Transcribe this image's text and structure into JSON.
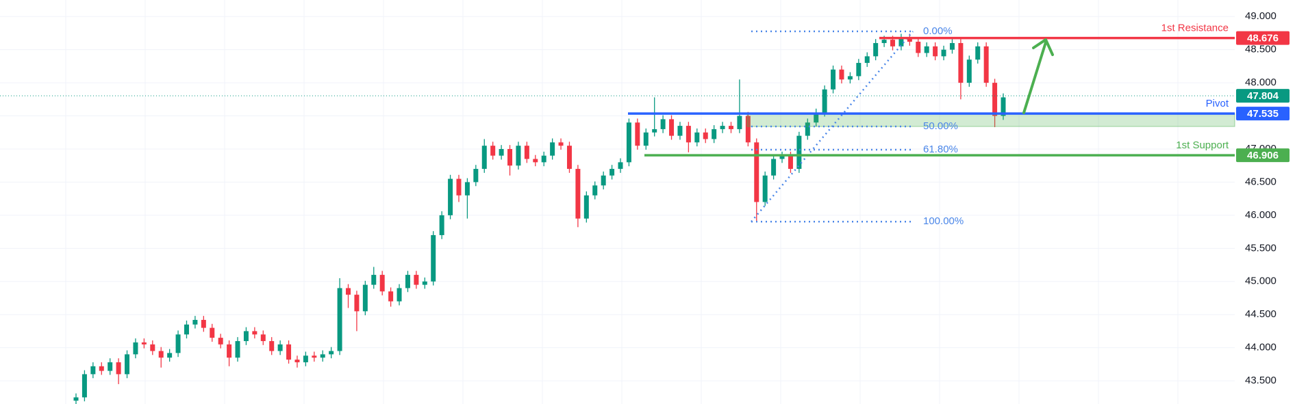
{
  "chart_data": {
    "type": "candlestick",
    "up_color": "#089981",
    "down_color": "#f23645",
    "open": [
      43.2,
      43.25,
      43.6,
      43.72,
      43.65,
      43.78,
      43.6,
      43.9,
      44.08,
      44.05,
      43.95,
      43.85,
      43.92,
      44.2,
      44.35,
      44.42,
      44.3,
      44.15,
      44.05,
      43.85,
      44.1,
      44.25,
      44.2,
      44.1,
      43.95,
      44.05,
      43.82,
      43.78,
      43.88,
      43.85,
      43.9,
      43.95,
      44.9,
      44.8,
      44.55,
      44.95,
      45.1,
      44.85,
      44.7,
      44.9,
      45.1,
      44.95,
      45.0,
      45.7,
      46.0,
      46.55,
      46.3,
      46.5,
      46.7,
      47.05,
      46.9,
      47.0,
      46.75,
      47.05,
      46.85,
      46.8,
      46.9,
      47.1,
      47.05,
      46.7,
      45.95,
      46.3,
      46.45,
      46.6,
      46.7,
      46.8,
      47.4,
      47.05,
      47.25,
      47.3,
      47.45,
      47.2,
      47.35,
      47.1,
      47.25,
      47.15,
      47.3,
      47.35,
      47.3,
      47.5,
      47.1,
      46.2,
      46.6,
      46.85,
      46.9,
      46.7,
      47.2,
      47.4,
      47.55,
      47.9,
      48.2,
      48.05,
      48.1,
      48.3,
      48.4,
      48.6,
      48.65,
      48.55,
      48.68,
      48.62,
      48.45,
      48.55,
      48.4,
      48.5,
      48.6,
      48.0,
      48.35,
      48.55,
      48.0,
      47.5
    ],
    "high": [
      43.31,
      43.66,
      43.78,
      43.78,
      43.84,
      43.84,
      43.96,
      44.14,
      44.14,
      44.11,
      44.01,
      43.98,
      44.26,
      44.41,
      44.48,
      44.48,
      44.36,
      44.21,
      44.11,
      44.16,
      44.31,
      44.31,
      44.26,
      44.16,
      44.11,
      44.11,
      43.88,
      43.94,
      43.94,
      43.96,
      44.01,
      45.05,
      44.96,
      44.86,
      45.01,
      45.22,
      45.16,
      44.91,
      44.96,
      45.16,
      45.16,
      45.06,
      45.76,
      46.06,
      46.61,
      46.61,
      46.56,
      46.76,
      47.15,
      47.11,
      47.06,
      47.06,
      47.11,
      47.11,
      46.91,
      46.96,
      47.16,
      47.16,
      47.11,
      46.76,
      46.36,
      46.51,
      46.66,
      46.76,
      46.86,
      47.46,
      47.46,
      47.31,
      47.78,
      47.51,
      47.51,
      47.41,
      47.41,
      47.31,
      47.31,
      47.36,
      47.41,
      47.41,
      48.05,
      47.56,
      47.16,
      46.66,
      46.91,
      46.96,
      46.96,
      47.26,
      47.46,
      47.61,
      47.96,
      48.26,
      48.26,
      48.16,
      48.36,
      48.46,
      48.66,
      48.71,
      48.71,
      48.74,
      48.74,
      48.68,
      48.61,
      48.61,
      48.56,
      48.66,
      48.66,
      48.41,
      48.61,
      48.61,
      48.06,
      47.84
    ],
    "low": [
      43.14,
      43.19,
      43.54,
      43.59,
      43.59,
      43.45,
      43.54,
      43.84,
      43.99,
      43.89,
      43.7,
      43.79,
      43.86,
      44.14,
      44.29,
      44.24,
      44.09,
      43.99,
      43.72,
      43.79,
      44.04,
      44.14,
      44.04,
      43.89,
      43.89,
      43.76,
      43.7,
      43.72,
      43.79,
      43.79,
      43.84,
      43.89,
      44.6,
      44.25,
      44.49,
      44.89,
      44.79,
      44.62,
      44.64,
      44.84,
      44.89,
      44.89,
      44.94,
      45.64,
      45.94,
      46.2,
      45.95,
      46.44,
      46.64,
      46.84,
      46.84,
      46.6,
      46.69,
      46.79,
      46.74,
      46.74,
      46.84,
      46.99,
      46.64,
      45.82,
      45.89,
      46.24,
      46.39,
      46.54,
      46.64,
      46.74,
      46.99,
      46.99,
      47.19,
      47.24,
      47.14,
      47.14,
      46.95,
      47.04,
      47.09,
      47.09,
      47.24,
      47.24,
      47.24,
      47.04,
      45.9,
      46.14,
      46.54,
      46.79,
      46.64,
      46.64,
      47.14,
      47.34,
      47.49,
      47.84,
      47.99,
      47.99,
      48.04,
      48.24,
      48.34,
      48.54,
      48.49,
      48.49,
      48.56,
      48.39,
      48.39,
      48.34,
      48.34,
      48.44,
      47.75,
      47.94,
      48.29,
      47.94,
      47.33,
      47.44
    ],
    "close": [
      43.25,
      43.6,
      43.72,
      43.65,
      43.78,
      43.6,
      43.9,
      44.08,
      44.05,
      43.95,
      43.85,
      43.92,
      44.2,
      44.35,
      44.42,
      44.3,
      44.15,
      44.05,
      43.85,
      44.1,
      44.25,
      44.2,
      44.1,
      43.95,
      44.05,
      43.82,
      43.78,
      43.88,
      43.85,
      43.9,
      43.95,
      44.9,
      44.8,
      44.55,
      44.95,
      45.1,
      44.85,
      44.7,
      44.9,
      45.1,
      44.95,
      45.0,
      45.7,
      46.0,
      46.55,
      46.3,
      46.5,
      46.7,
      47.05,
      46.9,
      47.0,
      46.75,
      47.05,
      46.85,
      46.8,
      46.9,
      47.1,
      47.05,
      46.7,
      45.95,
      46.3,
      46.45,
      46.6,
      46.7,
      46.8,
      47.4,
      47.05,
      47.25,
      47.3,
      47.45,
      47.2,
      47.35,
      47.1,
      47.25,
      47.15,
      47.3,
      47.35,
      47.3,
      47.5,
      47.1,
      46.2,
      46.6,
      46.85,
      46.9,
      46.7,
      47.2,
      47.4,
      47.55,
      47.9,
      48.2,
      48.05,
      48.1,
      48.3,
      48.4,
      48.6,
      48.65,
      48.55,
      48.68,
      48.62,
      48.45,
      48.55,
      48.4,
      48.5,
      48.6,
      48.0,
      48.35,
      48.55,
      48.0,
      47.5,
      47.78
    ],
    "ylim": [
      43.15,
      49.25
    ],
    "yticks": [
      {
        "value": 43.5,
        "label": "43.500"
      },
      {
        "value": 44,
        "label": "44.000"
      },
      {
        "value": 44.5,
        "label": "44.500"
      },
      {
        "value": 45,
        "label": "45.000"
      },
      {
        "value": 45.5,
        "label": "45.500"
      },
      {
        "value": 46,
        "label": "46.000"
      },
      {
        "value": 46.5,
        "label": "46.500"
      },
      {
        "value": 47,
        "label": "47.000"
      },
      {
        "value": 47.5,
        "label": "47.500"
      },
      {
        "value": 48,
        "label": "48.000"
      },
      {
        "value": 48.5,
        "label": "48.500"
      },
      {
        "value": 49,
        "label": "49.000"
      }
    ],
    "grid": true,
    "levels": [
      {
        "name": "1st Resistance",
        "value": 48.676,
        "color": "#f23645"
      },
      {
        "name": "Pivot",
        "value": 47.535,
        "color": "#2962ff"
      },
      {
        "name": "1st Support",
        "value": 46.906,
        "color": "#4caf50"
      }
    ],
    "last_price": {
      "value": 47.804,
      "color": "#089981"
    },
    "fibonacci": {
      "color": "#4a86e8",
      "levels": [
        {
          "ratio_label": "0.00%",
          "price": 48.776
        },
        {
          "ratio_label": "50.00%",
          "price": 47.34
        },
        {
          "ratio_label": "61.80%",
          "price": 46.99
        },
        {
          "ratio_label": "100.00%",
          "price": 45.903
        }
      ]
    }
  }
}
